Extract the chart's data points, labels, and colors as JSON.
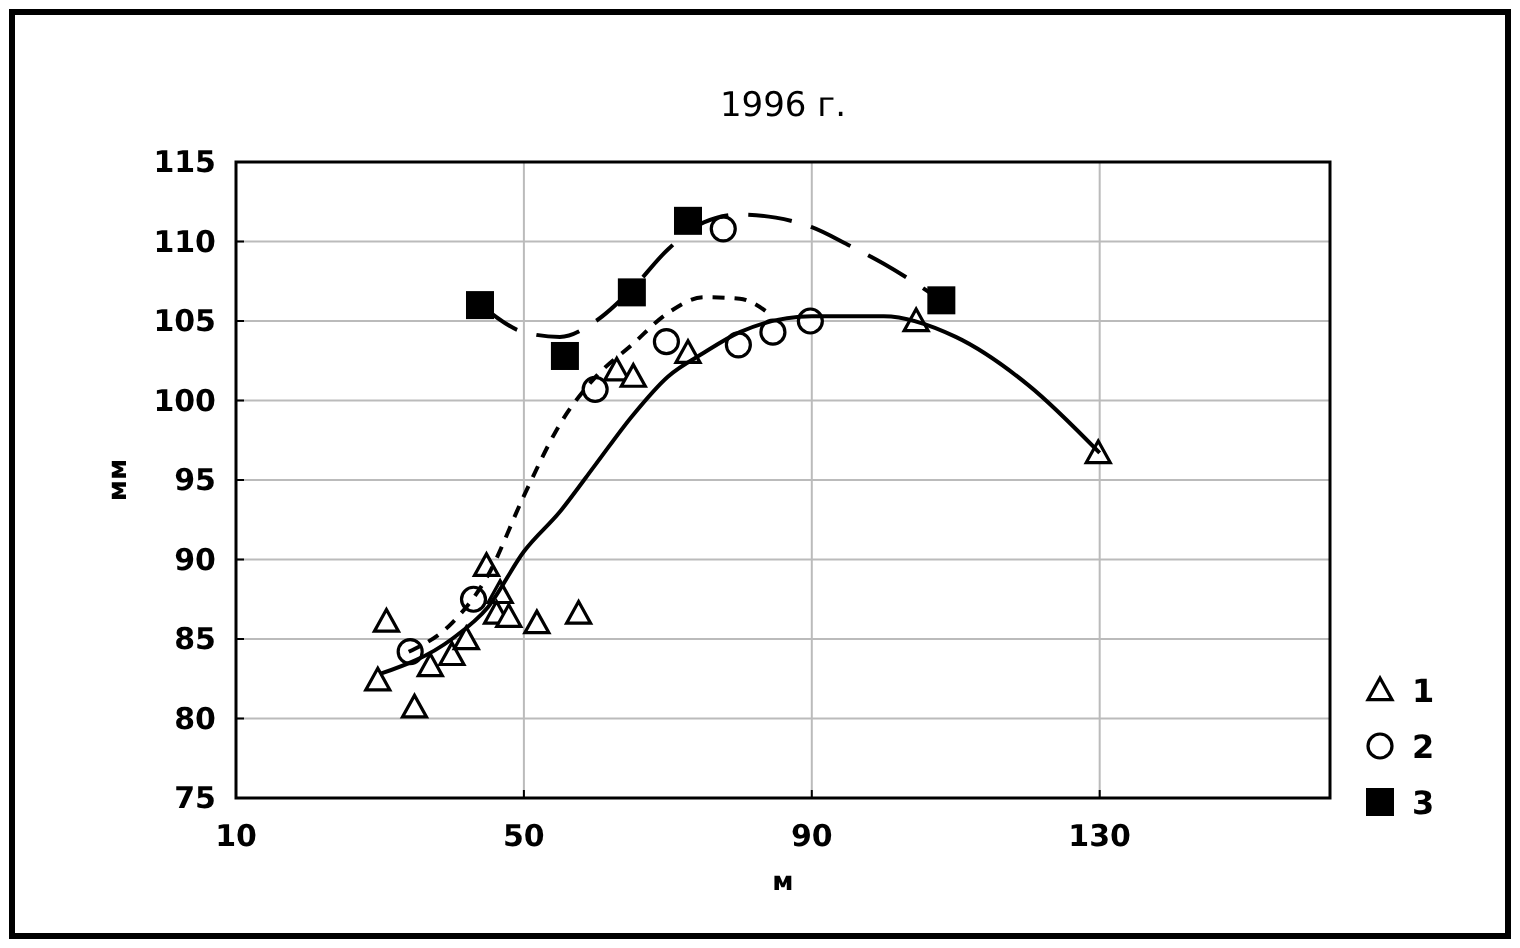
{
  "chart_data": {
    "type": "scatter",
    "title": "1996 г.",
    "xlabel": "м",
    "ylabel": "мм",
    "xlim": [
      10,
      162
    ],
    "ylim": [
      75,
      115
    ],
    "xticks": [
      10,
      50,
      90,
      130
    ],
    "yticks": [
      75,
      80,
      85,
      90,
      95,
      100,
      105,
      110,
      115
    ],
    "grid": true,
    "legend": "right",
    "series": [
      {
        "name": "1",
        "marker": "triangle",
        "color": "#000000",
        "x": [
          29.7,
          30.9,
          34.8,
          37,
          40,
          42,
          44.8,
          46.7,
          46.2,
          47.9,
          51.8,
          57.6,
          62.9,
          65.2,
          72.8,
          104.5,
          129.8
        ],
        "values": [
          82.4,
          86.1,
          80.7,
          83.3,
          84,
          85,
          89.6,
          87.9,
          86.6,
          86.4,
          86,
          86.6,
          101.9,
          101.5,
          103,
          105,
          96.7
        ]
      },
      {
        "name": "2",
        "marker": "circle",
        "color": "#000000",
        "x": [
          34.2,
          43,
          59.9,
          69.8,
          77.7,
          79.8,
          84.6,
          89.8
        ],
        "values": [
          84.2,
          87.5,
          100.7,
          103.7,
          110.8,
          103.5,
          104.3,
          105
        ]
      },
      {
        "name": "3",
        "marker": "square",
        "color": "#000000",
        "x": [
          43.9,
          55.7,
          65,
          72.8,
          108
        ],
        "values": [
          106,
          102.8,
          106.8,
          111.3,
          106.3
        ]
      },
      {
        "type": "line",
        "line_style": "solid",
        "color": "#000000",
        "x": [
          30,
          40,
          45,
          50,
          55,
          60,
          65,
          70,
          75,
          80,
          90,
          100,
          110,
          120,
          130
        ],
        "values": [
          82.8,
          85,
          87,
          90.5,
          93,
          96,
          99,
          101.5,
          103,
          104.3,
          105.3,
          105.3,
          104,
          101,
          96.7
        ]
      },
      {
        "type": "line",
        "line_style": "dashed",
        "color": "#000000",
        "x": [
          34,
          40,
          45,
          50,
          55,
          60,
          65,
          70,
          75,
          80,
          84
        ],
        "values": [
          84.2,
          86,
          89,
          94,
          98.5,
          101.5,
          103.5,
          105.5,
          106.5,
          106.4,
          105.5
        ]
      },
      {
        "type": "line",
        "line_style": "longdash",
        "color": "#000000",
        "x": [
          44,
          50,
          55,
          60,
          65,
          70,
          75,
          80,
          85,
          90,
          95,
          100,
          108
        ],
        "values": [
          106,
          104.3,
          104,
          105,
          107,
          109.5,
          111.2,
          111.7,
          111.5,
          110.9,
          109.8,
          108.6,
          106.3
        ]
      }
    ]
  }
}
